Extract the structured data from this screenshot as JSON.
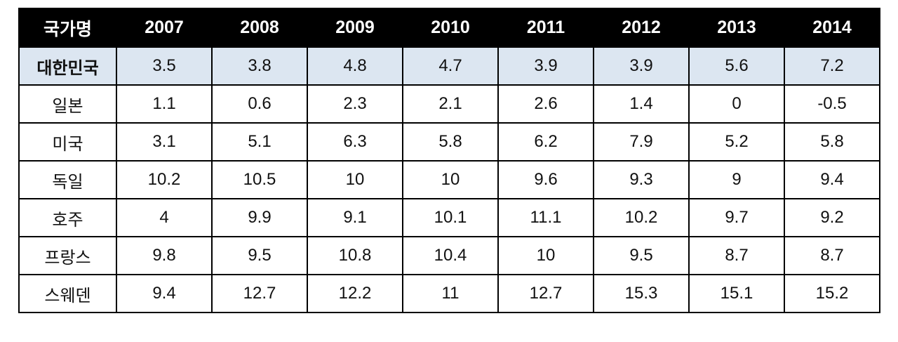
{
  "colors": {
    "header_bg": "#000000",
    "header_text": "#ffffff",
    "highlight_row_bg": "#dce6f1",
    "border": "#000000",
    "body_text": "#111111",
    "row_bg": "#ffffff"
  },
  "chart_data": {
    "type": "table",
    "title": "",
    "first_column_header": "국가명",
    "categories": [
      "2007",
      "2008",
      "2009",
      "2010",
      "2011",
      "2012",
      "2013",
      "2014"
    ],
    "series": [
      {
        "name": "대한민국",
        "values": [
          3.5,
          3.8,
          4.8,
          4.7,
          3.9,
          3.9,
          5.6,
          7.2
        ],
        "highlighted": true
      },
      {
        "name": "일본",
        "values": [
          1.1,
          0.6,
          2.3,
          2.1,
          2.6,
          1.4,
          0,
          -0.5
        ],
        "highlighted": false
      },
      {
        "name": "미국",
        "values": [
          3.1,
          5.1,
          6.3,
          5.8,
          6.2,
          7.9,
          5.2,
          5.8
        ],
        "highlighted": false
      },
      {
        "name": "독일",
        "values": [
          10.2,
          10.5,
          10,
          10,
          9.6,
          9.3,
          9,
          9.4
        ],
        "highlighted": false
      },
      {
        "name": "호주",
        "values": [
          4,
          9.9,
          9.1,
          10.1,
          11.1,
          10.2,
          9.7,
          9.2
        ],
        "highlighted": false
      },
      {
        "name": "프랑스",
        "values": [
          9.8,
          9.5,
          10.8,
          10.4,
          10,
          9.5,
          8.7,
          8.7
        ],
        "highlighted": false
      },
      {
        "name": "스웨덴",
        "values": [
          9.4,
          12.7,
          12.2,
          11,
          12.7,
          15.3,
          15.1,
          15.2
        ],
        "highlighted": false
      }
    ]
  }
}
